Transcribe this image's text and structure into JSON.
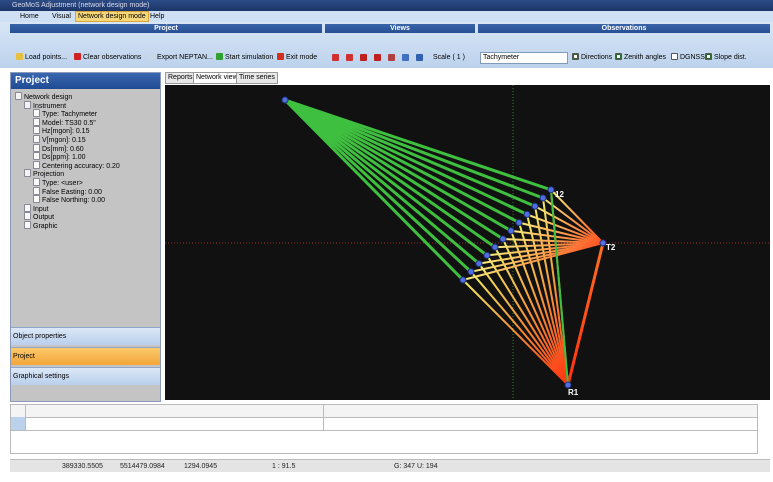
{
  "window": {
    "title": "GeoMoS Adjustment (network design mode)"
  },
  "menu": [
    "Home",
    "Visual",
    "Network design mode",
    "Help"
  ],
  "ribbon": {
    "project": {
      "title": "Project",
      "buttons": [
        "Load points...",
        "Clear observations",
        "Export NEPTAN...",
        "Start simulation",
        "Exit mode"
      ]
    },
    "views": {
      "title": "Views",
      "scale": "Scale ( 1 )"
    },
    "observations": {
      "title": "Observations",
      "dropdown": "Tachymeter",
      "checkboxes": [
        {
          "label": "Directions",
          "checked": true
        },
        {
          "label": "Zenith angles",
          "checked": true
        },
        {
          "label": "DGNSS",
          "checked": false
        },
        {
          "label": "Slope dist.",
          "checked": true
        }
      ]
    }
  },
  "left_panel": {
    "title": "Project",
    "tree": [
      {
        "label": "Network design",
        "children": [
          {
            "label": "Instrument",
            "children": [
              {
                "label": "Type: Tachymeter"
              },
              {
                "label": "Model: TS30 0.5\""
              },
              {
                "label": "Hz[mgon]: 0.15"
              },
              {
                "label": "V[mgon]: 0.15"
              },
              {
                "label": "Ds[mm]: 0.60"
              },
              {
                "label": "Ds[ppm]: 1.00"
              },
              {
                "label": "Centering accuracy: 0.20"
              }
            ]
          },
          {
            "label": "Projection",
            "children": [
              {
                "label": "Type: <user>"
              },
              {
                "label": "False Easting: 0.00"
              },
              {
                "label": "False Northing: 0.00"
              }
            ]
          },
          {
            "label": "Input"
          },
          {
            "label": "Output"
          },
          {
            "label": "Graphic"
          }
        ]
      }
    ],
    "sections": [
      "Object properties",
      "Project",
      "Graphical settings"
    ]
  },
  "tabs": [
    "Reports",
    "Network view",
    "Time series"
  ],
  "graphic": {
    "point_labels": [
      "12",
      "T2",
      "R1"
    ]
  },
  "status_bar": [
    "389330.5505",
    "5514479.0984",
    "1294.0945",
    "1 : 91.5",
    "G: 347 U: 194"
  ]
}
